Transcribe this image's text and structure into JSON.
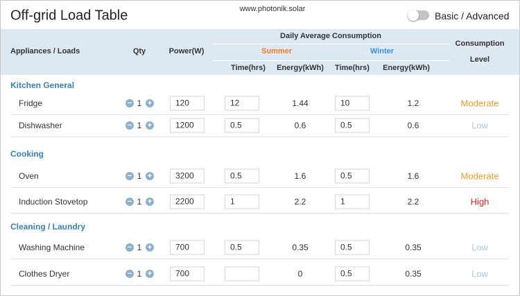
{
  "header": {
    "title": "Off-grid Load Table",
    "site": "www.photonik.solar",
    "toggle_label": "Basic / Advanced"
  },
  "table": {
    "header": {
      "appliances": "Appliances / Loads",
      "qty": "Qty",
      "power": "Power(W)",
      "daily": "Daily Average Consumption",
      "summer": "Summer",
      "winter": "Winter",
      "time": "Time(hrs)",
      "energy": "Energy(kWh)",
      "level_1": "Consumption",
      "level_2": "Level"
    },
    "groups": [
      {
        "name": "Kitchen General",
        "rows": [
          {
            "name": "Fridge",
            "qty": 1,
            "power": 120,
            "summer_time": 12,
            "summer_energy": 1.44,
            "winter_time": 10,
            "winter_energy": 1.2,
            "level": "Moderate",
            "level_color": "#f39a2b"
          },
          {
            "name": "Dishwasher",
            "qty": 1,
            "power": 1200,
            "summer_time": 0.5,
            "summer_energy": 0.6,
            "winter_time": 0.5,
            "winter_energy": 0.6,
            "level": "Low",
            "level_color": "#a9cbe6"
          }
        ]
      },
      {
        "name": "Cooking",
        "rows": [
          {
            "name": "Oven",
            "qty": 1,
            "power": 3200,
            "summer_time": 0.5,
            "summer_energy": 1.6,
            "winter_time": 0.5,
            "winter_energy": 1.6,
            "level": "Moderate",
            "level_color": "#f39a2b"
          },
          {
            "name": "Induction Stovetop",
            "qty": 1,
            "power": 2200,
            "summer_time": 1,
            "summer_energy": 2.2,
            "winter_time": 1,
            "winter_energy": 2.2,
            "level": "High",
            "level_color": "#e0201e"
          }
        ]
      },
      {
        "name": "Cleaning / Laundry",
        "rows": [
          {
            "name": "Washing Machine",
            "qty": 1,
            "power": 700,
            "summer_time": 0.5,
            "summer_energy": 0.35,
            "winter_time": 0.5,
            "winter_energy": 0.35,
            "level": "Low",
            "level_color": "#a9cbe6"
          },
          {
            "name": "Clothes Dryer",
            "qty": 1,
            "power": 700,
            "summer_energy": 0,
            "winter_time": 0.5,
            "winter_energy": 0.35,
            "level": "Low",
            "level_color": "#a9cbe6"
          }
        ]
      }
    ]
  }
}
